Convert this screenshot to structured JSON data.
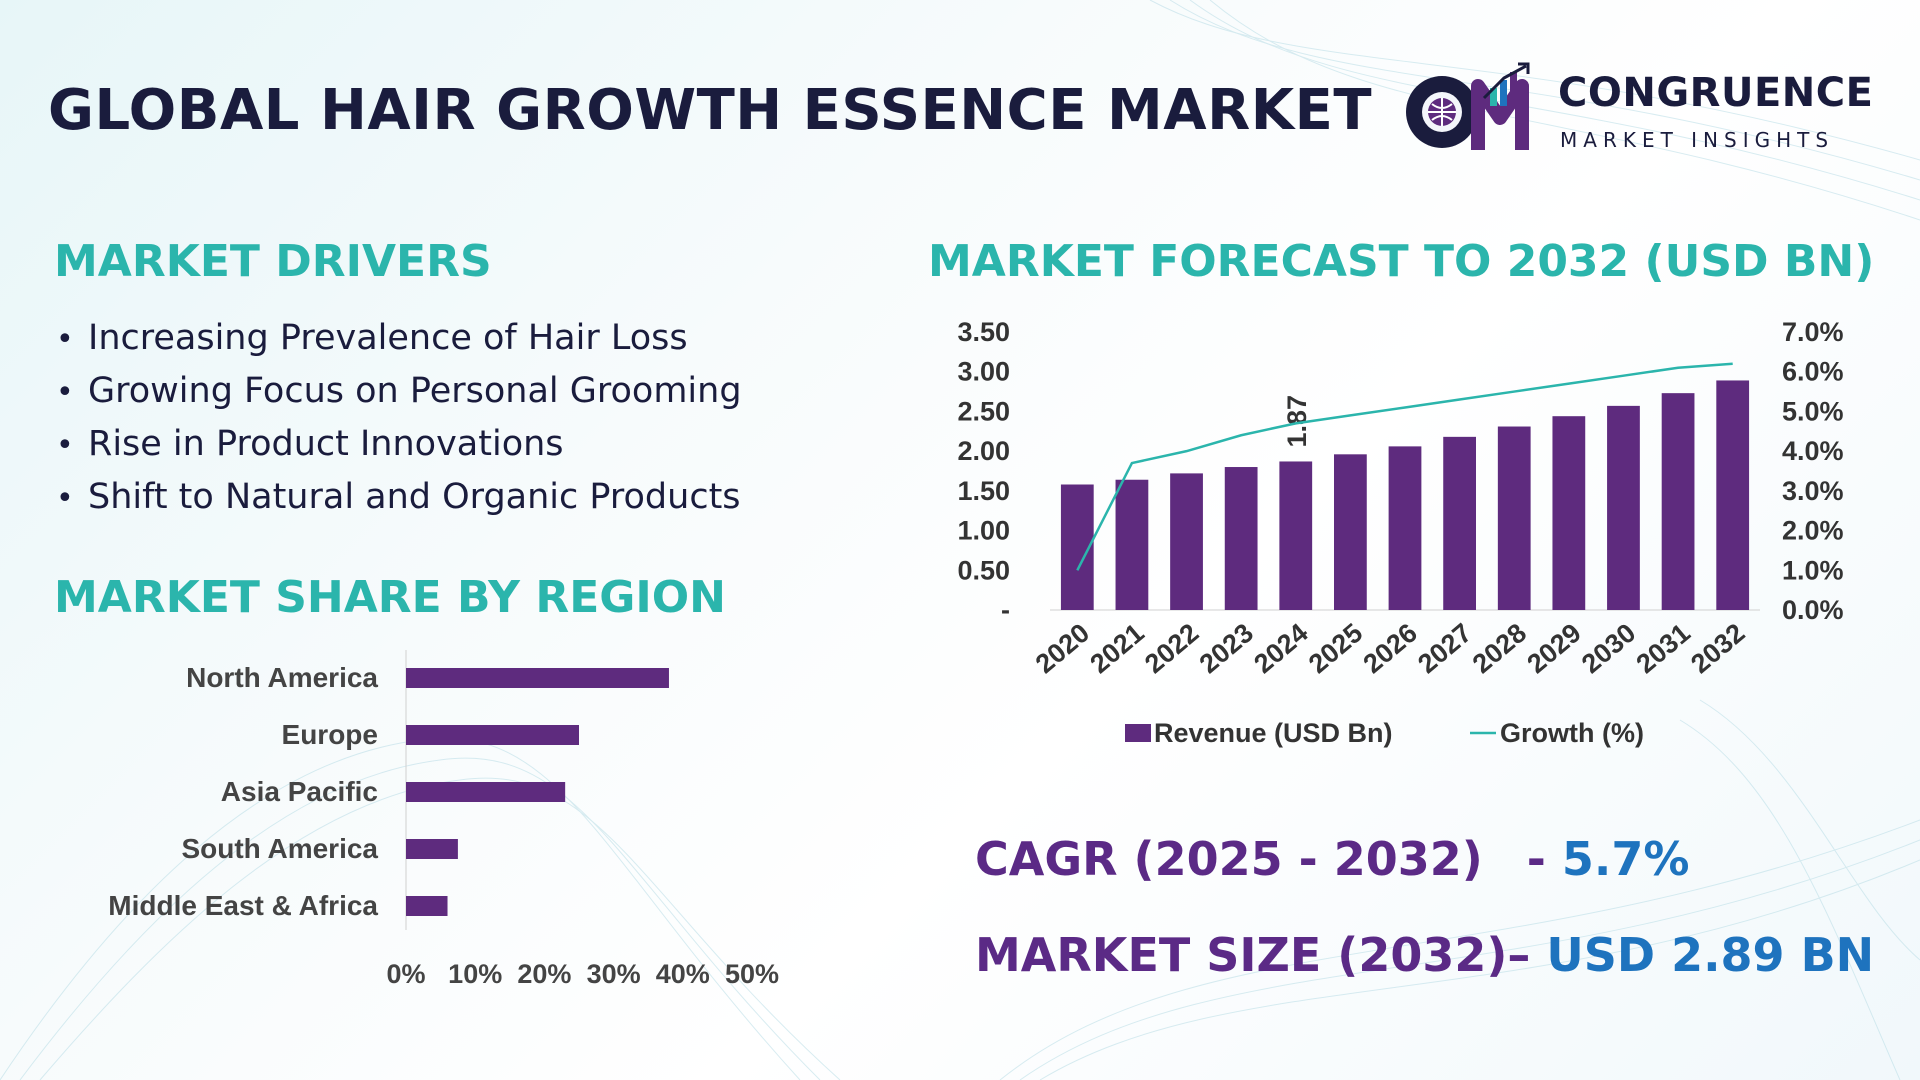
{
  "title": "GLOBAL HAIR GROWTH ESSENCE MARKET",
  "logo": {
    "initials": "CM",
    "name": "CONGRUENCE",
    "tagline": "MARKET INSIGHTS"
  },
  "colors": {
    "accent": "#2bb5ac",
    "bar": "#5e2b7e",
    "line": "#2bb5ac",
    "kpi_label": "#5b2a86",
    "kpi_value": "#1e73be",
    "title": "#1a1c3d"
  },
  "drivers": {
    "heading": "MARKET DRIVERS",
    "items": [
      "Increasing Prevalence of Hair Loss",
      "Growing Focus on Personal Grooming",
      "Rise in Product Innovations",
      "Shift to Natural and Organic Products"
    ]
  },
  "forecast": {
    "heading": "MARKET FORECAST TO 2032 (USD BN)"
  },
  "region": {
    "heading": "MARKET SHARE BY REGION"
  },
  "kpis": {
    "cagr_label": "CAGR (2025 - 2032)",
    "cagr_sep": "- ",
    "cagr_value": "5.7%",
    "size_label": "MARKET SIZE (2032)",
    "size_sep": "– ",
    "size_value": "USD 2.89 BN"
  },
  "chart_data": [
    {
      "type": "bar",
      "title": "MARKET FORECAST TO 2032 (USD BN)",
      "categories": [
        "2020",
        "2021",
        "2022",
        "2023",
        "2024",
        "2025",
        "2026",
        "2027",
        "2028",
        "2029",
        "2030",
        "2031",
        "2032"
      ],
      "series": [
        {
          "name": "Revenue (USD Bn)",
          "type": "bar",
          "axis": "left",
          "values": [
            1.58,
            1.64,
            1.72,
            1.8,
            1.87,
            1.96,
            2.06,
            2.18,
            2.31,
            2.44,
            2.57,
            2.73,
            2.89
          ]
        },
        {
          "name": "Growth (%)",
          "type": "line",
          "axis": "right",
          "values": [
            1.0,
            3.7,
            4.0,
            4.4,
            4.7,
            4.9,
            5.1,
            5.3,
            5.5,
            5.7,
            5.9,
            6.1,
            6.2
          ]
        }
      ],
      "ylim": [
        0,
        3.5
      ],
      "y_ticks": [
        "-",
        "0.50",
        "1.00",
        "1.50",
        "2.00",
        "2.50",
        "3.00",
        "3.50"
      ],
      "y2lim": [
        0,
        7
      ],
      "y2_ticks": [
        "0.0%",
        "1.0%",
        "2.0%",
        "3.0%",
        "4.0%",
        "5.0%",
        "6.0%",
        "7.0%"
      ],
      "data_labels": [
        {
          "category": "2024",
          "text": "1.87"
        }
      ],
      "legend": "bottom"
    },
    {
      "type": "bar",
      "orientation": "horizontal",
      "title": "MARKET SHARE BY REGION",
      "categories": [
        "North America",
        "Europe",
        "Asia Pacific",
        "South America",
        "Middle East & Africa"
      ],
      "values": [
        38,
        25,
        23,
        7.5,
        6
      ],
      "xlim": [
        0,
        50
      ],
      "x_ticks": [
        "0%",
        "10%",
        "20%",
        "30%",
        "40%",
        "50%"
      ]
    }
  ]
}
